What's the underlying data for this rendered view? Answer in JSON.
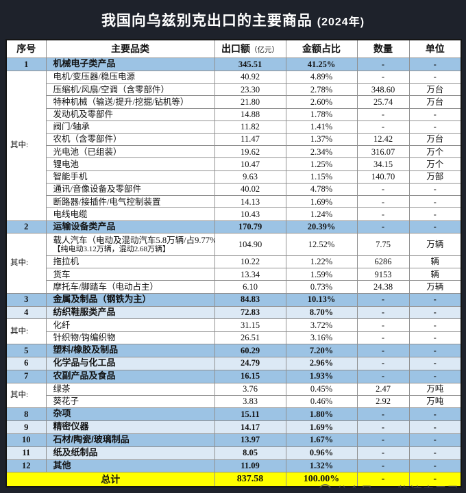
{
  "title": {
    "text": "我国向乌兹别克出口的主要商品",
    "year": "(2024年)"
  },
  "watermark": {
    "text": "公众号——物流启示录"
  },
  "colors": {
    "page_background": "#1e222b",
    "row_medium_blue": "#9cc3e4",
    "row_light_blue": "#dce9f5",
    "total_yellow": "#ffff00",
    "title_text": "#ffffff"
  },
  "chart_data": {
    "type": "table",
    "title": "我国向乌兹别克出口的主要商品 (2024年)",
    "columns": [
      "序号",
      "主要品类",
      "出口额",
      "金额占比",
      "数量",
      "单位"
    ],
    "export_unit_note": "（亿元）",
    "qizhong_label": "其中:",
    "rows": [
      {
        "kind": "main",
        "shade": "medium",
        "no": "1",
        "name": "机械电子类产品",
        "export": "345.51",
        "share": "41.25%",
        "qty": "-",
        "unit": "-"
      },
      {
        "kind": "sub",
        "shade": "white",
        "name": "电机/变压器/稳压电源",
        "export": "40.92",
        "share": "4.89%",
        "qty": "-",
        "unit": "-"
      },
      {
        "kind": "sub",
        "shade": "white",
        "name": "压缩机/风扇/空调（含零部件）",
        "export": "23.30",
        "share": "2.78%",
        "qty": "348.60",
        "unit": "万台"
      },
      {
        "kind": "sub",
        "shade": "white",
        "name": "特种机械（输送/提升/挖掘/钻机等）",
        "export": "21.80",
        "share": "2.60%",
        "qty": "25.74",
        "unit": "万台"
      },
      {
        "kind": "sub",
        "shade": "white",
        "name": "发动机及零部件",
        "export": "14.88",
        "share": "1.78%",
        "qty": "-",
        "unit": "-"
      },
      {
        "kind": "sub",
        "shade": "white",
        "name": "阀门/轴承",
        "export": "11.82",
        "share": "1.41%",
        "qty": "-",
        "unit": "-"
      },
      {
        "kind": "sub",
        "shade": "white",
        "name": "农机（含零部件）",
        "export": "11.47",
        "share": "1.37%",
        "qty": "12.42",
        "unit": "万台"
      },
      {
        "kind": "sub",
        "shade": "white",
        "name": "光电池（已组装）",
        "export": "19.62",
        "share": "2.34%",
        "qty": "316.07",
        "unit": "万个"
      },
      {
        "kind": "sub",
        "shade": "white",
        "name": "锂电池",
        "export": "10.47",
        "share": "1.25%",
        "qty": "34.15",
        "unit": "万个"
      },
      {
        "kind": "sub",
        "shade": "white",
        "name": "智能手机",
        "export": "9.63",
        "share": "1.15%",
        "qty": "140.70",
        "unit": "万部"
      },
      {
        "kind": "sub",
        "shade": "white",
        "name": "通讯/音像设备及零部件",
        "export": "40.02",
        "share": "4.78%",
        "qty": "-",
        "unit": "-"
      },
      {
        "kind": "sub",
        "shade": "white",
        "name": "断路器/接插件/电气控制装置",
        "export": "14.13",
        "share": "1.69%",
        "qty": "-",
        "unit": "-"
      },
      {
        "kind": "sub",
        "shade": "white",
        "name": "电线电缆",
        "export": "10.43",
        "share": "1.24%",
        "qty": "-",
        "unit": "-"
      },
      {
        "kind": "main",
        "shade": "medium",
        "no": "2",
        "name": "运输设备类产品",
        "export": "170.79",
        "share": "20.39%",
        "qty": "-",
        "unit": "-"
      },
      {
        "kind": "sub",
        "shade": "white",
        "name": "载人汽车（电动及混动汽车5.8万辆/占9.77%）",
        "name2": "【纯电动3.12万辆，混动2.68万辆】",
        "export": "104.90",
        "share": "12.52%",
        "qty": "7.75",
        "unit": "万辆"
      },
      {
        "kind": "sub",
        "shade": "white",
        "name": "拖拉机",
        "export": "10.22",
        "share": "1.22%",
        "qty": "6286",
        "unit": "辆"
      },
      {
        "kind": "sub",
        "shade": "white",
        "name": "货车",
        "export": "13.34",
        "share": "1.59%",
        "qty": "9153",
        "unit": "辆"
      },
      {
        "kind": "sub",
        "shade": "white",
        "name": "摩托车/脚踏车（电动占主）",
        "export": "6.10",
        "share": "0.73%",
        "qty": "24.38",
        "unit": "万辆"
      },
      {
        "kind": "main",
        "shade": "medium",
        "no": "3",
        "name": "金属及制品（钢铁为主）",
        "export": "84.83",
        "share": "10.13%",
        "qty": "-",
        "unit": "-"
      },
      {
        "kind": "main",
        "shade": "light",
        "no": "4",
        "name": "纺织鞋服类产品",
        "export": "72.83",
        "share": "8.70%",
        "qty": "-",
        "unit": "-"
      },
      {
        "kind": "sub",
        "shade": "white",
        "name": "化纤",
        "export": "31.15",
        "share": "3.72%",
        "qty": "-",
        "unit": "-"
      },
      {
        "kind": "sub",
        "shade": "white",
        "name": "针织物/钩编织物",
        "export": "26.51",
        "share": "3.16%",
        "qty": "-",
        "unit": "-"
      },
      {
        "kind": "main",
        "shade": "medium",
        "no": "5",
        "name": "塑料/橡胶及制品",
        "export": "60.29",
        "share": "7.20%",
        "qty": "-",
        "unit": "-"
      },
      {
        "kind": "main",
        "shade": "light",
        "no": "6",
        "name": "化学品与化工品",
        "export": "24.79",
        "share": "2.96%",
        "qty": "-",
        "unit": "-"
      },
      {
        "kind": "main",
        "shade": "medium",
        "no": "7",
        "name": "农副产品及食品",
        "export": "16.15",
        "share": "1.93%",
        "qty": "-",
        "unit": "-"
      },
      {
        "kind": "sub",
        "shade": "white",
        "name": "绿茶",
        "export": "3.76",
        "share": "0.45%",
        "qty": "2.47",
        "unit": "万吨"
      },
      {
        "kind": "sub",
        "shade": "white",
        "name": "葵花子",
        "export": "3.83",
        "share": "0.46%",
        "qty": "2.92",
        "unit": "万吨"
      },
      {
        "kind": "main",
        "shade": "medium",
        "no": "8",
        "name": "杂项",
        "export": "15.11",
        "share": "1.80%",
        "qty": "-",
        "unit": "-"
      },
      {
        "kind": "main",
        "shade": "light",
        "no": "9",
        "name": "精密仪器",
        "export": "14.17",
        "share": "1.69%",
        "qty": "-",
        "unit": "-"
      },
      {
        "kind": "main",
        "shade": "medium",
        "no": "10",
        "name": "石材/陶瓷/玻璃制品",
        "export": "13.97",
        "share": "1.67%",
        "qty": "-",
        "unit": "-"
      },
      {
        "kind": "main",
        "shade": "light",
        "no": "11",
        "name": "纸及纸制品",
        "export": "8.05",
        "share": "0.96%",
        "qty": "-",
        "unit": "-"
      },
      {
        "kind": "main",
        "shade": "medium",
        "no": "12",
        "name": "其他",
        "export": "11.09",
        "share": "1.32%",
        "qty": "-",
        "unit": "-"
      },
      {
        "kind": "total",
        "shade": "yellow",
        "label": "总计",
        "export": "837.58",
        "share": "100.00%",
        "qty": "-",
        "unit": "-"
      }
    ]
  }
}
